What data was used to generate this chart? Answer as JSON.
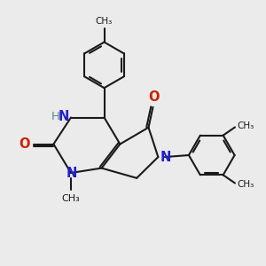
{
  "bg_color": "#ebebeb",
  "line_color": "#1a1a1a",
  "N_color": "#2020cc",
  "O_color": "#cc2000",
  "H_color": "#5c8888",
  "bond_lw": 1.5,
  "font_size": 10.5,
  "small_font": 8.0,
  "xlim": [
    -2.2,
    5.0
  ],
  "ylim": [
    -3.2,
    4.0
  ]
}
